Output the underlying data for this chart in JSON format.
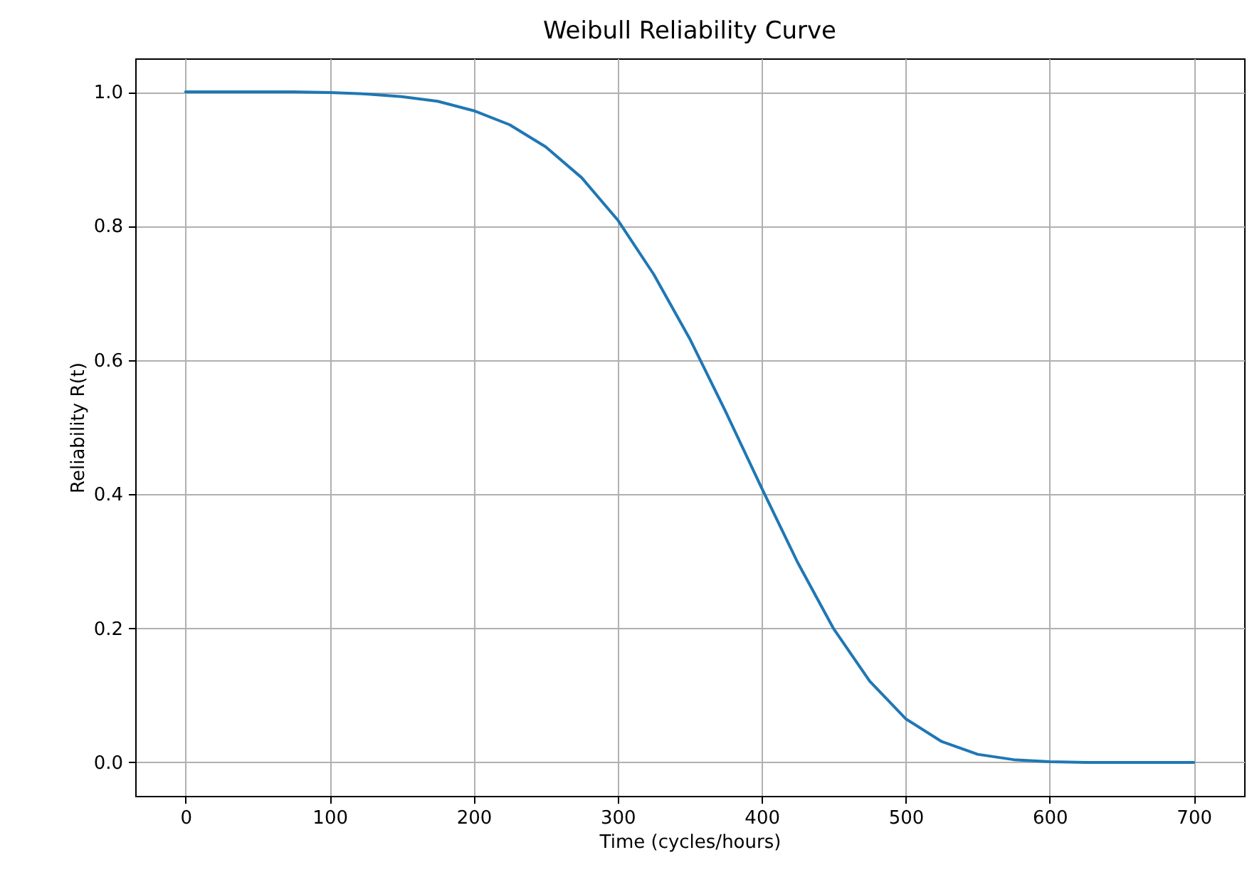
{
  "chart_data": {
    "type": "line",
    "title": "Weibull Reliability Curve",
    "xlabel": "Time (cycles/hours)",
    "ylabel": "Reliability R(t)",
    "x": [
      0,
      25,
      50,
      75,
      100,
      125,
      150,
      175,
      200,
      225,
      250,
      275,
      300,
      325,
      350,
      375,
      400,
      425,
      450,
      475,
      500,
      525,
      550,
      575,
      600,
      625,
      650,
      675,
      700
    ],
    "series": [
      {
        "color": "#1f77b4",
        "values": [
          1.0,
          1.0,
          1.0,
          1.0,
          0.999,
          0.997,
          0.993,
          0.986,
          0.972,
          0.951,
          0.918,
          0.872,
          0.809,
          0.728,
          0.632,
          0.523,
          0.409,
          0.298,
          0.199,
          0.121,
          0.065,
          0.031,
          0.012,
          0.004,
          0.001,
          0.0,
          0.0,
          0.0,
          0.0
        ]
      }
    ],
    "xlim": [
      -35,
      735
    ],
    "xticks": [
      0,
      100,
      200,
      300,
      400,
      500,
      600,
      700
    ],
    "ylim": [
      -0.05,
      1.05
    ],
    "yticks": [
      {
        "value": 0,
        "label": "0.0"
      },
      {
        "value": 0.2,
        "label": "0.2"
      },
      {
        "value": 0.4,
        "label": "0.4"
      },
      {
        "value": 0.6,
        "label": "0.6"
      },
      {
        "value": 0.8,
        "label": "0.8"
      },
      {
        "value": 1,
        "label": "1.0"
      }
    ],
    "grid": true,
    "line_style": "solid"
  }
}
